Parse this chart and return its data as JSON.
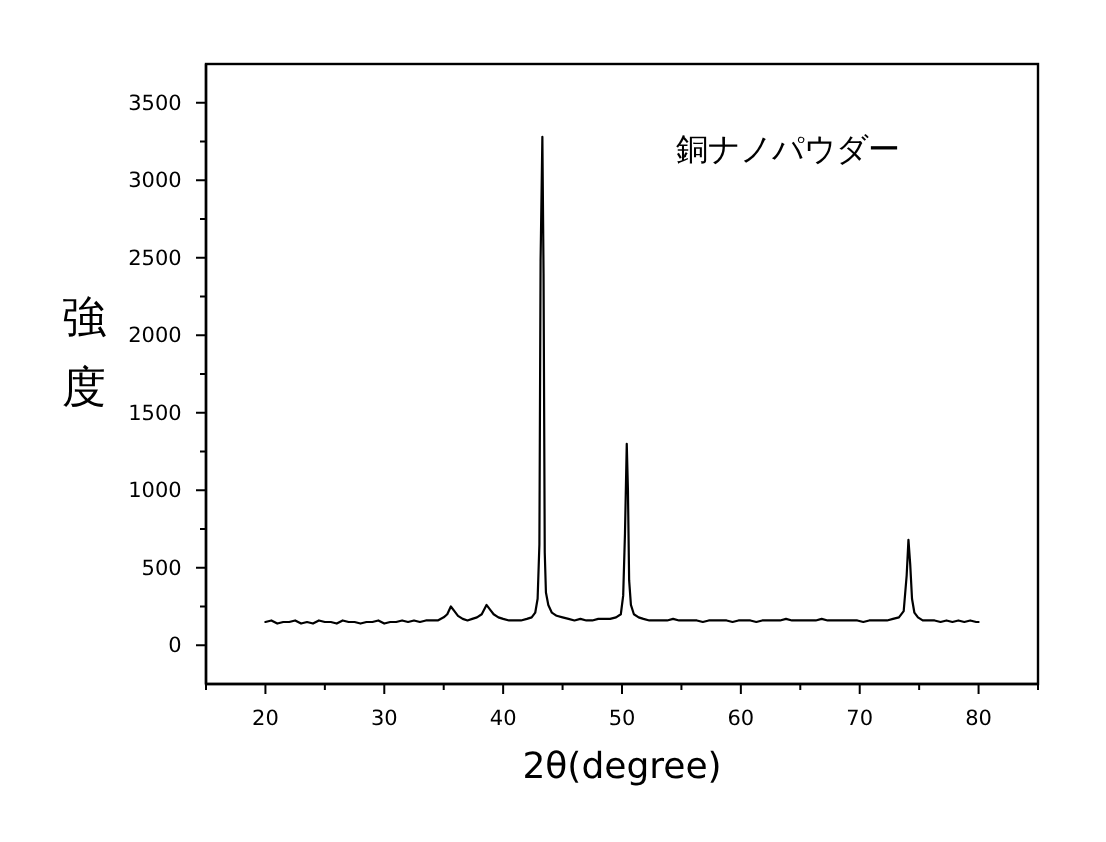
{
  "chart_data": {
    "type": "line",
    "xlabel": "2θ(degree)",
    "ylabel": "強度",
    "annotations": [
      "銅ナノパウダー"
    ],
    "color": "#000000",
    "xlim": [
      15,
      85
    ],
    "ylim": [
      -250,
      3750
    ],
    "xticks": [
      {
        "value": 15,
        "label": null
      },
      20,
      {
        "value": 25,
        "label": null
      },
      30,
      {
        "value": 35,
        "label": null
      },
      40,
      {
        "value": 45,
        "label": null
      },
      50,
      {
        "value": 55,
        "label": null
      },
      60,
      {
        "value": 65,
        "label": null
      },
      70,
      {
        "value": 75,
        "label": null
      },
      80,
      {
        "value": 85,
        "label": null
      }
    ],
    "yticks": [
      0,
      {
        "value": 250,
        "label": null
      },
      500,
      {
        "value": 750,
        "label": null
      },
      1000,
      {
        "value": 1250,
        "label": null
      },
      1500,
      {
        "value": 1750,
        "label": null
      },
      2000,
      {
        "value": 2250,
        "label": null
      },
      2500,
      {
        "value": 2750,
        "label": null
      },
      3000,
      {
        "value": 3250,
        "label": null
      },
      3500
    ],
    "x": [
      20,
      20.5,
      21,
      21.5,
      22,
      22.5,
      23,
      23.5,
      24,
      24.5,
      25,
      25.5,
      26,
      26.5,
      27,
      27.5,
      28,
      28.5,
      29,
      29.5,
      30,
      30.5,
      31,
      31.5,
      32,
      32.5,
      33,
      33.5,
      34,
      34.5,
      35,
      35.3,
      35.6,
      35.9,
      36.2,
      36.6,
      37,
      37.4,
      37.8,
      38.2,
      38.6,
      38.9,
      39.2,
      39.6,
      40,
      40.5,
      41,
      41.5,
      42,
      42.4,
      42.7,
      42.9,
      43.05,
      43.15,
      43.3,
      43.4,
      43.5,
      43.6,
      43.8,
      44.1,
      44.5,
      45,
      45.5,
      46,
      46.5,
      47,
      47.5,
      48,
      48.5,
      49,
      49.5,
      49.9,
      50.1,
      50.25,
      50.4,
      50.5,
      50.6,
      50.75,
      51,
      51.4,
      51.8,
      52.3,
      52.8,
      53.3,
      53.8,
      54.3,
      54.8,
      55.3,
      55.8,
      56.3,
      56.8,
      57.3,
      57.8,
      58.3,
      58.8,
      59.3,
      59.8,
      60.3,
      60.8,
      61.3,
      61.8,
      62.3,
      62.8,
      63.3,
      63.8,
      64.3,
      64.8,
      65.3,
      65.8,
      66.3,
      66.8,
      67.3,
      67.8,
      68.3,
      68.8,
      69.3,
      69.8,
      70.3,
      70.8,
      71.3,
      71.8,
      72.3,
      72.8,
      73.3,
      73.7,
      73.95,
      74.1,
      74.25,
      74.4,
      74.6,
      74.9,
      75.3,
      75.8,
      76.3,
      76.8,
      77.3,
      77.8,
      78.3,
      78.8,
      79.3,
      79.8,
      80
    ],
    "values": [
      150,
      160,
      140,
      150,
      150,
      160,
      140,
      150,
      140,
      160,
      150,
      150,
      140,
      160,
      150,
      150,
      140,
      150,
      150,
      160,
      140,
      150,
      150,
      160,
      150,
      160,
      150,
      160,
      160,
      160,
      180,
      200,
      250,
      220,
      190,
      170,
      160,
      170,
      180,
      200,
      260,
      230,
      200,
      180,
      170,
      160,
      160,
      160,
      170,
      180,
      210,
      300,
      650,
      2480,
      3280,
      2400,
      600,
      340,
      260,
      210,
      190,
      180,
      170,
      160,
      170,
      160,
      160,
      170,
      170,
      170,
      180,
      200,
      320,
      720,
      1300,
      1000,
      420,
      260,
      200,
      180,
      170,
      160,
      160,
      160,
      160,
      170,
      160,
      160,
      160,
      160,
      150,
      160,
      160,
      160,
      160,
      150,
      160,
      160,
      160,
      150,
      160,
      160,
      160,
      160,
      170,
      160,
      160,
      160,
      160,
      160,
      170,
      160,
      160,
      160,
      160,
      160,
      160,
      150,
      160,
      160,
      160,
      160,
      170,
      180,
      220,
      450,
      680,
      520,
      300,
      210,
      180,
      160,
      160,
      160,
      150,
      160,
      150,
      160,
      150,
      160,
      150,
      150
    ]
  }
}
